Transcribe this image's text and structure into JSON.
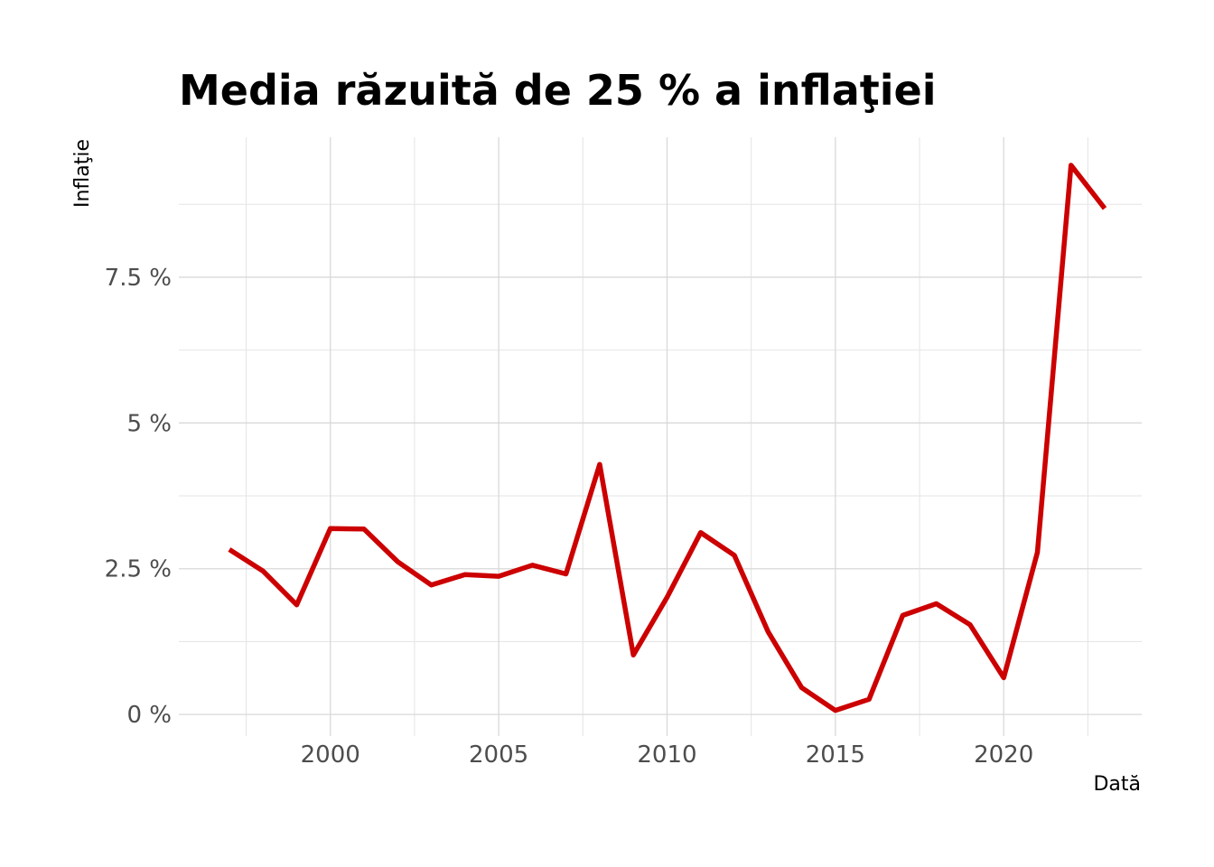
{
  "chart_data": {
    "type": "line",
    "title": "Media răzuită de 25 % a inflaţiei",
    "xlabel": "Dată",
    "ylabel": "Inflaţie",
    "x": [
      1997,
      1998,
      1999,
      2000,
      2001,
      2002,
      2003,
      2004,
      2005,
      2006,
      2007,
      2008,
      2009,
      2010,
      2011,
      2012,
      2013,
      2014,
      2015,
      2016,
      2017,
      2018,
      2019,
      2020,
      2021,
      2022,
      2023
    ],
    "series": [
      {
        "values": [
          2.83,
          2.46,
          1.88,
          3.19,
          3.18,
          2.62,
          2.22,
          2.4,
          2.37,
          2.56,
          2.41,
          4.29,
          1.02,
          2.01,
          3.12,
          2.73,
          1.42,
          0.46,
          0.07,
          0.26,
          1.7,
          1.9,
          1.54,
          0.63,
          2.78,
          9.42,
          8.68
        ],
        "color": "#cc0000"
      }
    ],
    "xlim": [
      1995.5,
      2024.1
    ],
    "ylim": [
      -0.37,
      9.9
    ],
    "x_ticks": [
      2000,
      2005,
      2010,
      2015,
      2020
    ],
    "x_tick_labels": [
      "2000",
      "2005",
      "2010",
      "2015",
      "2020"
    ],
    "y_ticks": [
      0,
      2.5,
      5,
      7.5
    ],
    "y_tick_labels": [
      "0 %",
      "2.5 %",
      "5 %",
      "7.5 %"
    ],
    "grid": true,
    "legend": "none"
  }
}
